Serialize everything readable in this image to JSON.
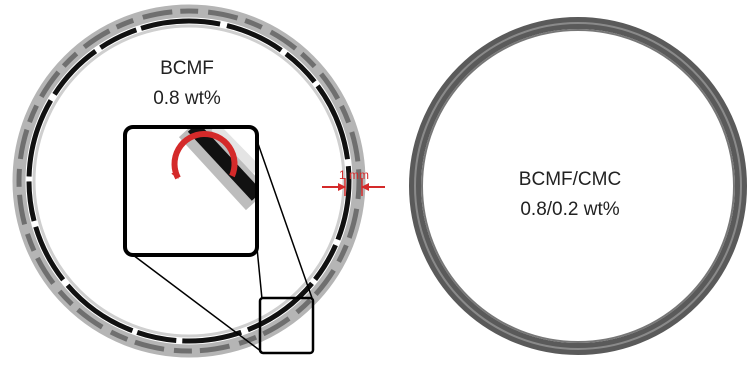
{
  "left": {
    "label": "BCMF",
    "concentration": "0.8 wt%"
  },
  "scale_bar": "1 mm",
  "right": {
    "label": "BCMF/CMC",
    "concentration": "0.8/0.2 wt%"
  }
}
